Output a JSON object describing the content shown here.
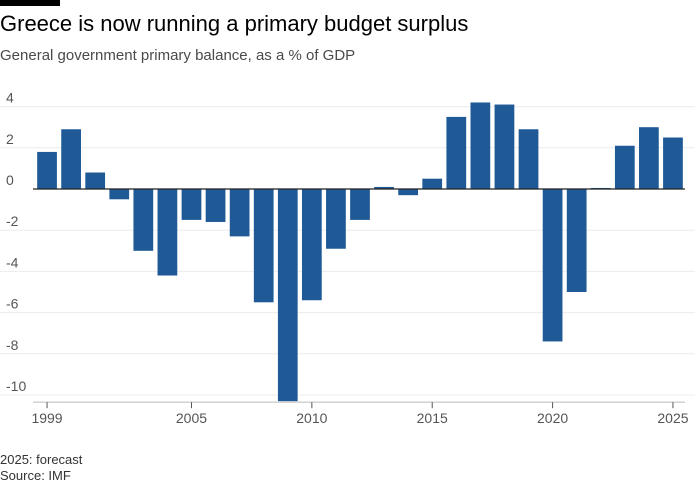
{
  "header": {
    "title": "Greece is now running a primary budget surplus",
    "subtitle": "General government primary balance, as a % of GDP"
  },
  "footer": {
    "note": "2025: forecast",
    "source": "Source: IMF"
  },
  "colors": {
    "bar": "#1f5a96",
    "grid": "#ececec",
    "zero_line": "#222222"
  },
  "chart_data": {
    "type": "bar",
    "title": "Greece is now running a primary budget surplus",
    "subtitle": "General government primary balance, as a % of GDP",
    "xlabel": "",
    "ylabel": "",
    "ylim": [
      -10.3,
      4.7
    ],
    "grid": true,
    "x_ticks": [
      "1999",
      "2005",
      "2010",
      "2015",
      "2020",
      "2025"
    ],
    "y_ticks": [
      4,
      2,
      0,
      -2,
      -4,
      -6,
      -8,
      -10
    ],
    "y_tick_labels": [
      "4",
      "2",
      "0",
      "-2",
      "-4",
      "-6",
      "-8",
      "-10"
    ],
    "categories": [
      "1999",
      "2000",
      "2001",
      "2002",
      "2003",
      "2004",
      "2005",
      "2006",
      "2007",
      "2008",
      "2009",
      "2010",
      "2011",
      "2012",
      "2013",
      "2014",
      "2015",
      "2016",
      "2017",
      "2018",
      "2019",
      "2020",
      "2021",
      "2022",
      "2023",
      "2024",
      "2025"
    ],
    "values": [
      1.8,
      2.9,
      0.8,
      -0.5,
      -3.0,
      -4.2,
      -1.5,
      -1.6,
      -2.3,
      -5.5,
      -10.3,
      -5.4,
      -2.9,
      -1.5,
      0.1,
      -0.3,
      0.5,
      3.5,
      4.2,
      4.1,
      2.9,
      -7.4,
      -5.0,
      0.05,
      2.1,
      3.0,
      2.5
    ],
    "series": [
      {
        "name": "Primary balance (% of GDP)",
        "values": [
          1.8,
          2.9,
          0.8,
          -0.5,
          -3.0,
          -4.2,
          -1.5,
          -1.6,
          -2.3,
          -5.5,
          -10.3,
          -5.4,
          -2.9,
          -1.5,
          0.1,
          -0.3,
          0.5,
          3.5,
          4.2,
          4.1,
          2.9,
          -7.4,
          -5.0,
          0.05,
          2.1,
          3.0,
          2.5
        ]
      }
    ]
  }
}
